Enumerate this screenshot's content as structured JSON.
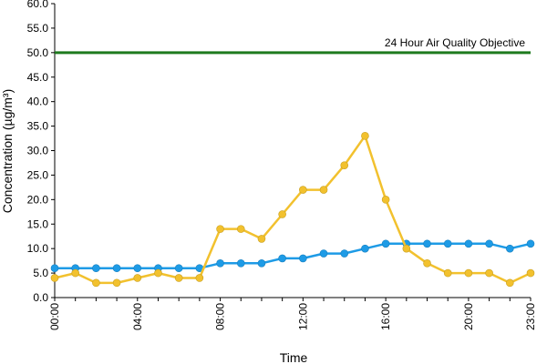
{
  "chart_data": {
    "type": "line",
    "xlabel": "Time",
    "ylabel": "Concentration (µg/m³)",
    "ylim": [
      0,
      60
    ],
    "y_ticks": [
      "0.0",
      "5.0",
      "10.0",
      "15.0",
      "20.0",
      "25.0",
      "30.0",
      "35.0",
      "40.0",
      "45.0",
      "50.0",
      "55.0",
      "60.0"
    ],
    "x_ticks": [
      "00:00",
      "04:00",
      "08:00",
      "12:00",
      "16:00",
      "20:00",
      "23:00"
    ],
    "x_tick_hours": [
      0,
      4,
      8,
      12,
      16,
      20,
      23
    ],
    "x": [
      0,
      1,
      2,
      3,
      4,
      5,
      6,
      7,
      8,
      9,
      10,
      11,
      12,
      13,
      14,
      15,
      16,
      17,
      18,
      19,
      20,
      21,
      22,
      23
    ],
    "grid": false,
    "legend": "none",
    "series": [
      {
        "color": "#1e9be6",
        "values": [
          6,
          6,
          6,
          6,
          6,
          6,
          6,
          6,
          7,
          7,
          7,
          8,
          8,
          9,
          9,
          10,
          11,
          11,
          11,
          11,
          11,
          11,
          10,
          11
        ]
      },
      {
        "color": "#f2c12e",
        "values": [
          4,
          5,
          3,
          3,
          4,
          5,
          4,
          4,
          14,
          14,
          12,
          17,
          22,
          22,
          27,
          33,
          20,
          10,
          7,
          5,
          5,
          5,
          3,
          5
        ]
      }
    ],
    "objective": {
      "value": 50,
      "label": "24 Hour Air Quality Objective",
      "color": "#1e7a1e"
    }
  }
}
